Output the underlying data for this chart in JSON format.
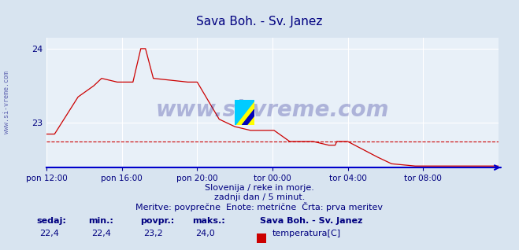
{
  "title": "Sava Boh. - Sv. Janez",
  "title_color": "#000080",
  "bg_color": "#d8e4f0",
  "plot_bg_color": "#e8f0f8",
  "grid_color": "#ffffff",
  "axis_color": "#000080",
  "line_color": "#cc0000",
  "dashed_line_color": "#cc0000",
  "watermark_text": "www.si-vreme.com",
  "watermark_color": "#000080",
  "watermark_alpha": 0.25,
  "ylabel_text": "www.si-vreme.com",
  "ylabel_color": "#000080",
  "ylim": [
    22.4,
    24.15
  ],
  "yticks": [
    23,
    24
  ],
  "xtick_labels": [
    "pon 12:00",
    "pon 16:00",
    "pon 20:00",
    "tor 00:00",
    "tor 04:00",
    "tor 08:00"
  ],
  "xtick_positions": [
    0,
    48,
    96,
    144,
    192,
    240
  ],
  "total_points": 289,
  "subtitle1": "Slovenija / reke in morje.",
  "subtitle2": "zadnji dan / 5 minut.",
  "subtitle3": "Meritve: povprečne  Enote: metrične  Črta: prva meritev",
  "subtitle_color": "#000080",
  "footer_labels": [
    "sedaj:",
    "min.:",
    "povpr.:",
    "maks.:"
  ],
  "footer_values": [
    "22,4",
    "22,4",
    "23,2",
    "24,0"
  ],
  "footer_series_name": "Sava Boh. - Sv. Janez",
  "footer_series_label": "temperatura[C]",
  "footer_color": "#000080",
  "footer_value_color": "#000080",
  "dashed_y": 22.75,
  "arrow_color": "#0000cc",
  "spine_color": "#0000cc"
}
